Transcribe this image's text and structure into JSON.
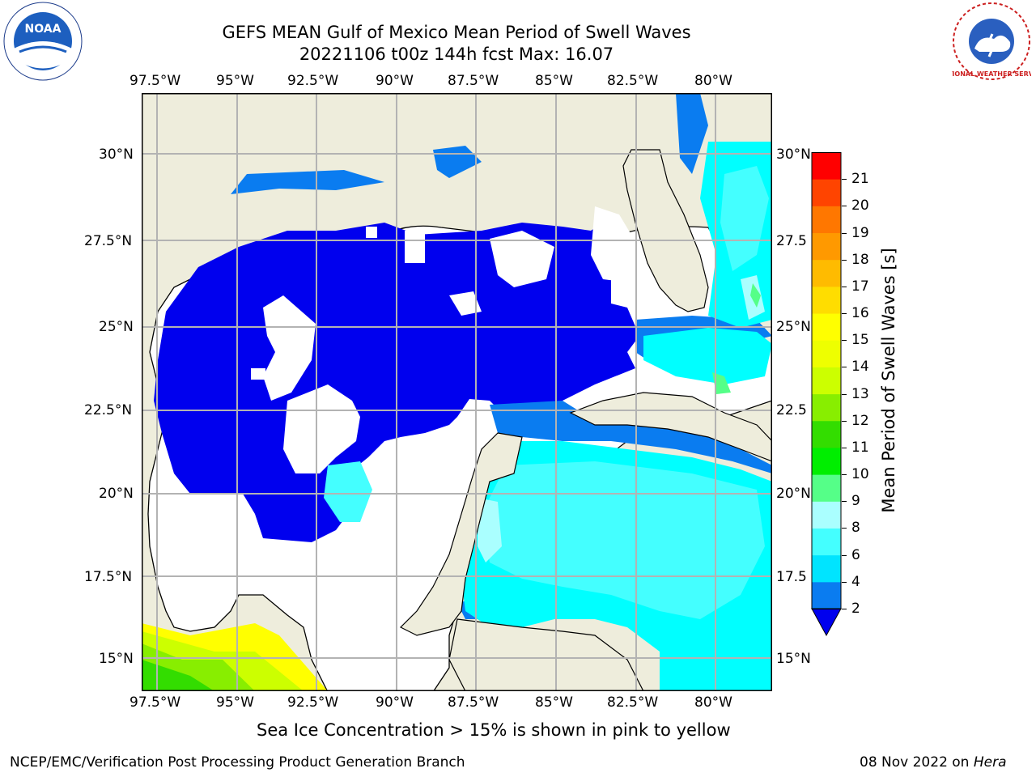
{
  "header": {
    "title_line1": "GEFS MEAN Gulf of Mexico Mean Period of Swell Waves",
    "title_line2": "20221106 t00z 144h fcst   Max: 16.07"
  },
  "map": {
    "lon_ticks": [
      "97.5°W",
      "95°W",
      "92.5°W",
      "90°W",
      "87.5°W",
      "85°W",
      "82.5°W",
      "80°W"
    ],
    "lat_ticks_left": [
      "30°N",
      "27.5°N",
      "25°N",
      "22.5°N",
      "20°N",
      "17.5°N",
      "15°N"
    ],
    "lat_ticks_right": [
      "30°N",
      "27.5",
      "25°N",
      "22.5",
      "20°N",
      "17.5",
      "15°N"
    ],
    "colors": {
      "land": "#eeeddc",
      "grid": "#b3b3b3",
      "deep_blue": "#0000ee",
      "cyan": "#44ffff"
    }
  },
  "colorbar": {
    "label": "Mean Period of Swell Waves [s]",
    "ticks": [
      "2",
      "4",
      "6",
      "8",
      "9",
      "10",
      "11",
      "12",
      "13",
      "14",
      "15",
      "16",
      "17",
      "18",
      "19",
      "20",
      "21"
    ],
    "colors": [
      "#0a7cf0",
      "#00e4ff",
      "#44ffff",
      "#aaffff",
      "#55ff88",
      "#00ee00",
      "#33dd00",
      "#88ee00",
      "#ccff00",
      "#eeff00",
      "#ffff00",
      "#ffdd00",
      "#ffbb00",
      "#ff9900",
      "#ff7700",
      "#ff4400",
      "#ff0000"
    ],
    "extend_color": "#0000ee"
  },
  "footer": {
    "note": "Sea Ice Concentration > 15% is shown in pink to yellow",
    "credit": "NCEP/EMC/Verification Post Processing Product Generation Branch",
    "date": "08 Nov 2022 on ",
    "machine": "Hera"
  },
  "logos": {
    "left_text": "NOAA",
    "right_text": "NATIONAL WEATHER SERVICE"
  }
}
